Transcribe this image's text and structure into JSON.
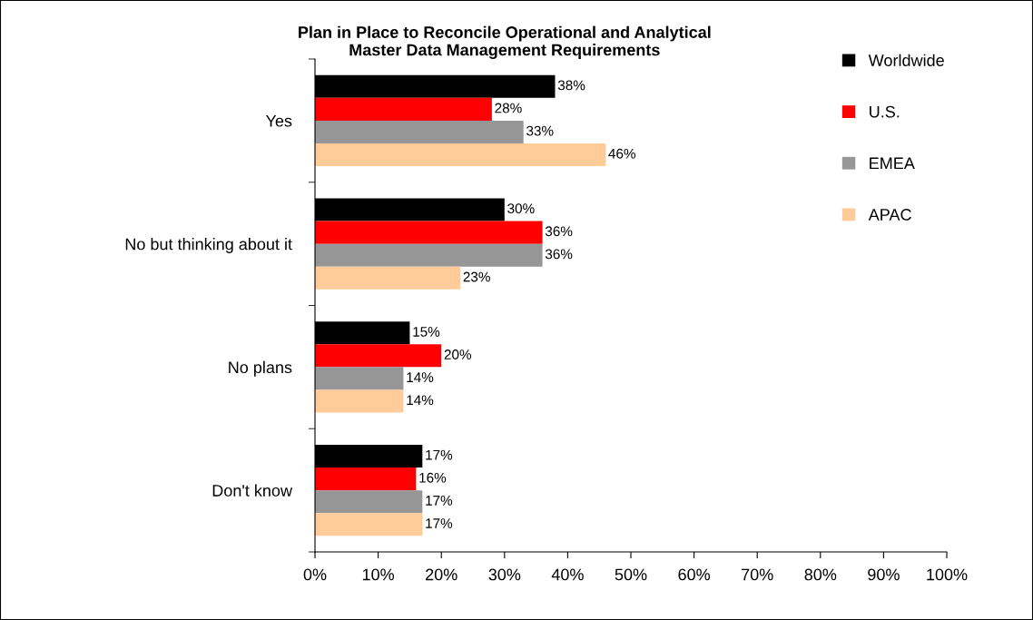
{
  "chart_data": {
    "type": "bar",
    "orientation": "horizontal",
    "title": "Plan in Place to Reconcile Operational and Analytical\nMaster Data Management Requirements",
    "categories": [
      "Yes",
      "No but thinking about it",
      "No plans",
      "Don't know"
    ],
    "series": [
      {
        "name": "Worldwide",
        "color": "#000000",
        "values": [
          38,
          30,
          15,
          17
        ],
        "value_labels": [
          "38%",
          "30%",
          "15%",
          "17%"
        ]
      },
      {
        "name": "U.S.",
        "color": "#ff0000",
        "values": [
          28,
          36,
          20,
          16
        ],
        "value_labels": [
          "28%",
          "36%",
          "20%",
          "16%"
        ]
      },
      {
        "name": "EMEA",
        "color": "#969696",
        "values": [
          33,
          36,
          14,
          17
        ],
        "value_labels": [
          "33%",
          "36%",
          "14%",
          "17%"
        ]
      },
      {
        "name": "APAC",
        "color": "#ffcc99",
        "values": [
          46,
          23,
          14,
          17
        ],
        "value_labels": [
          "46%",
          "23%",
          "14%",
          "17%"
        ]
      }
    ],
    "xlim": [
      0,
      100
    ],
    "xticks": [
      {
        "value": 0,
        "label": "0%"
      },
      {
        "value": 10,
        "label": "10%"
      },
      {
        "value": 20,
        "label": "20%"
      },
      {
        "value": 30,
        "label": "30%"
      },
      {
        "value": 40,
        "label": "40%"
      },
      {
        "value": 50,
        "label": "50%"
      },
      {
        "value": 60,
        "label": "60%"
      },
      {
        "value": 70,
        "label": "70%"
      },
      {
        "value": 80,
        "label": "80%"
      },
      {
        "value": 90,
        "label": "90%"
      },
      {
        "value": 100,
        "label": "100%"
      }
    ],
    "grid": false,
    "legend": "top right"
  }
}
